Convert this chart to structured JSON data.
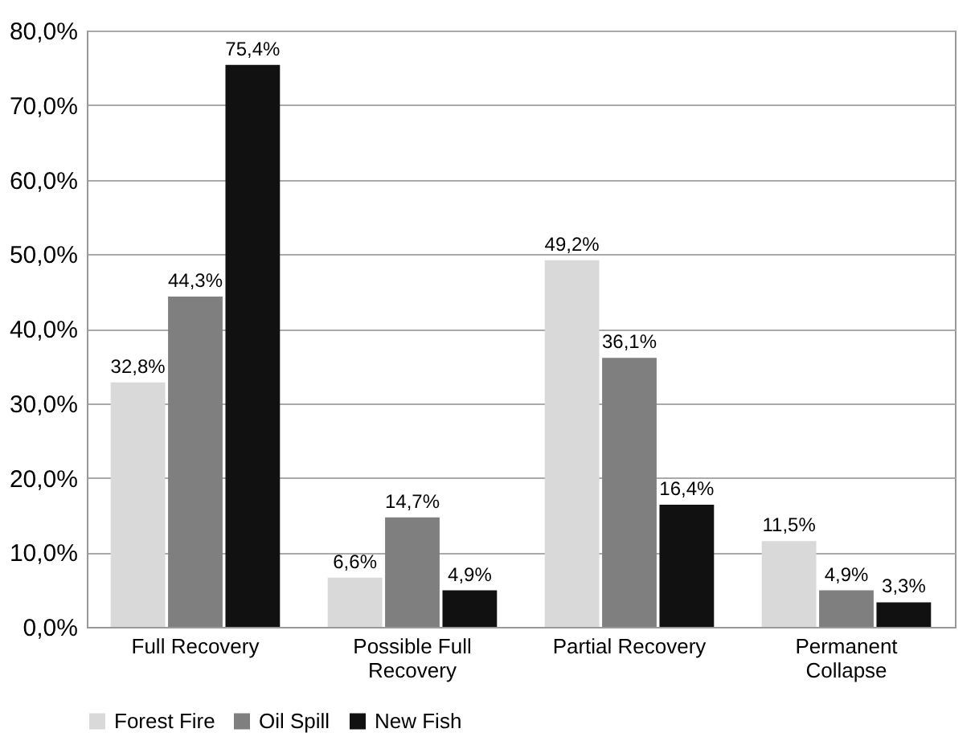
{
  "chart_data": {
    "type": "bar",
    "categories": [
      "Full Recovery",
      "Possible Full Recovery",
      "Partial Recovery",
      "Permanent Collapse"
    ],
    "series": [
      {
        "name": "Forest Fire",
        "color": "#d9d9d9",
        "values": [
          32.8,
          6.6,
          49.2,
          11.5
        ],
        "value_labels": [
          "32,8%",
          "6,6%",
          "49,2%",
          "11,5%"
        ]
      },
      {
        "name": "Oil Spill",
        "color": "#7f7f7f",
        "values": [
          44.3,
          14.7,
          36.1,
          4.9
        ],
        "value_labels": [
          "44,3%",
          "14,7%",
          "36,1%",
          "4,9%"
        ]
      },
      {
        "name": "New Fish",
        "color": "#111111",
        "values": [
          75.4,
          4.9,
          16.4,
          3.3
        ],
        "value_labels": [
          "75,4%",
          "4,9%",
          "16,4%",
          "3,3%"
        ]
      }
    ],
    "ylim": [
      0,
      80
    ],
    "yticks": [
      {
        "value": 0,
        "label": "0,0%"
      },
      {
        "value": 10,
        "label": "10,0%"
      },
      {
        "value": 20,
        "label": "20,0%"
      },
      {
        "value": 30,
        "label": "30,0%"
      },
      {
        "value": 40,
        "label": "40,0%"
      },
      {
        "value": 50,
        "label": "50,0%"
      },
      {
        "value": 60,
        "label": "60,0%"
      },
      {
        "value": 70,
        "label": "70,0%"
      },
      {
        "value": 80,
        "label": "80,0%"
      }
    ],
    "grid": "y",
    "legend": "bottom"
  }
}
